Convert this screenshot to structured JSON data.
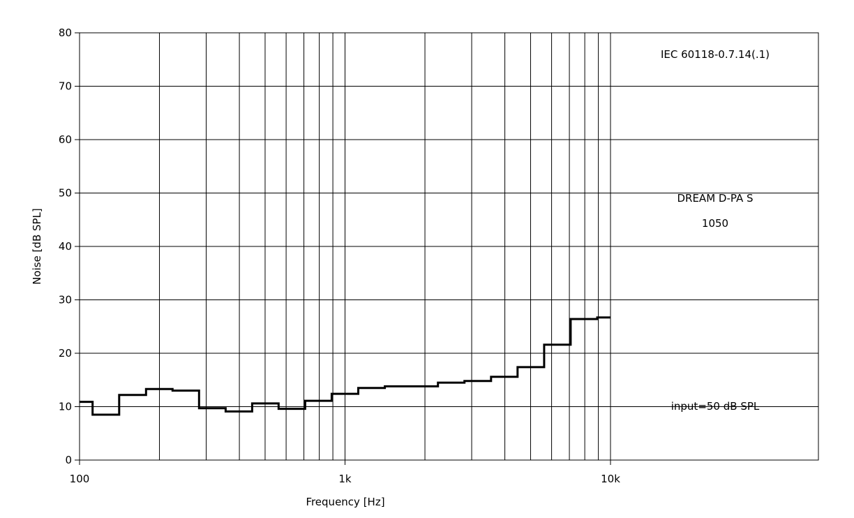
{
  "chart_data": {
    "type": "line",
    "title": "",
    "xlabel": "Frequency [Hz]",
    "ylabel": "Noise [dB SPL]",
    "x_scale": "log",
    "xlim": [
      100,
      10000
    ],
    "ylim": [
      0,
      80
    ],
    "x_ticks": [
      {
        "value": 100,
        "label": "100"
      },
      {
        "value": 1000,
        "label": "1k"
      },
      {
        "value": 10000,
        "label": "10k"
      }
    ],
    "y_ticks": [
      {
        "value": 0,
        "label": "0"
      },
      {
        "value": 10,
        "label": "10"
      },
      {
        "value": 20,
        "label": "20"
      },
      {
        "value": 30,
        "label": "30"
      },
      {
        "value": 40,
        "label": "40"
      },
      {
        "value": 50,
        "label": "50"
      },
      {
        "value": 60,
        "label": "60"
      },
      {
        "value": 70,
        "label": "70"
      },
      {
        "value": 80,
        "label": "80"
      }
    ],
    "grid": true,
    "series": [
      {
        "style": "step",
        "color": "#000000",
        "points": [
          [
            100,
            10.9
          ],
          [
            112,
            10.9
          ],
          [
            112,
            8.5
          ],
          [
            141,
            8.5
          ],
          [
            141,
            12.2
          ],
          [
            178,
            12.2
          ],
          [
            178,
            13.3
          ],
          [
            224,
            13.3
          ],
          [
            224,
            13.0
          ],
          [
            282,
            13.0
          ],
          [
            282,
            9.7
          ],
          [
            355,
            9.7
          ],
          [
            355,
            9.1
          ],
          [
            447,
            9.1
          ],
          [
            447,
            10.6
          ],
          [
            562,
            10.6
          ],
          [
            562,
            9.6
          ],
          [
            708,
            9.6
          ],
          [
            708,
            11.1
          ],
          [
            891,
            11.1
          ],
          [
            891,
            12.4
          ],
          [
            1122,
            12.4
          ],
          [
            1122,
            13.5
          ],
          [
            1413,
            13.5
          ],
          [
            1413,
            13.8
          ],
          [
            2239,
            13.8
          ],
          [
            2239,
            14.5
          ],
          [
            2818,
            14.5
          ],
          [
            2818,
            14.8
          ],
          [
            3548,
            14.8
          ],
          [
            3548,
            15.6
          ],
          [
            4467,
            15.6
          ],
          [
            4467,
            17.4
          ],
          [
            5623,
            17.4
          ],
          [
            5623,
            21.6
          ],
          [
            7079,
            21.6
          ],
          [
            7079,
            26.4
          ],
          [
            8913,
            26.4
          ],
          [
            8913,
            26.7
          ],
          [
            10000,
            26.7
          ]
        ]
      }
    ],
    "annotations": [
      {
        "text": "IEC 60118-0.7.14(.1)",
        "position": "top-right"
      },
      {
        "text": "DREAM D-PA S",
        "position": "middle-right"
      },
      {
        "text": "1050",
        "position": "middle-right"
      },
      {
        "text": "input=50 dB SPL",
        "position": "bottom-right"
      }
    ]
  }
}
